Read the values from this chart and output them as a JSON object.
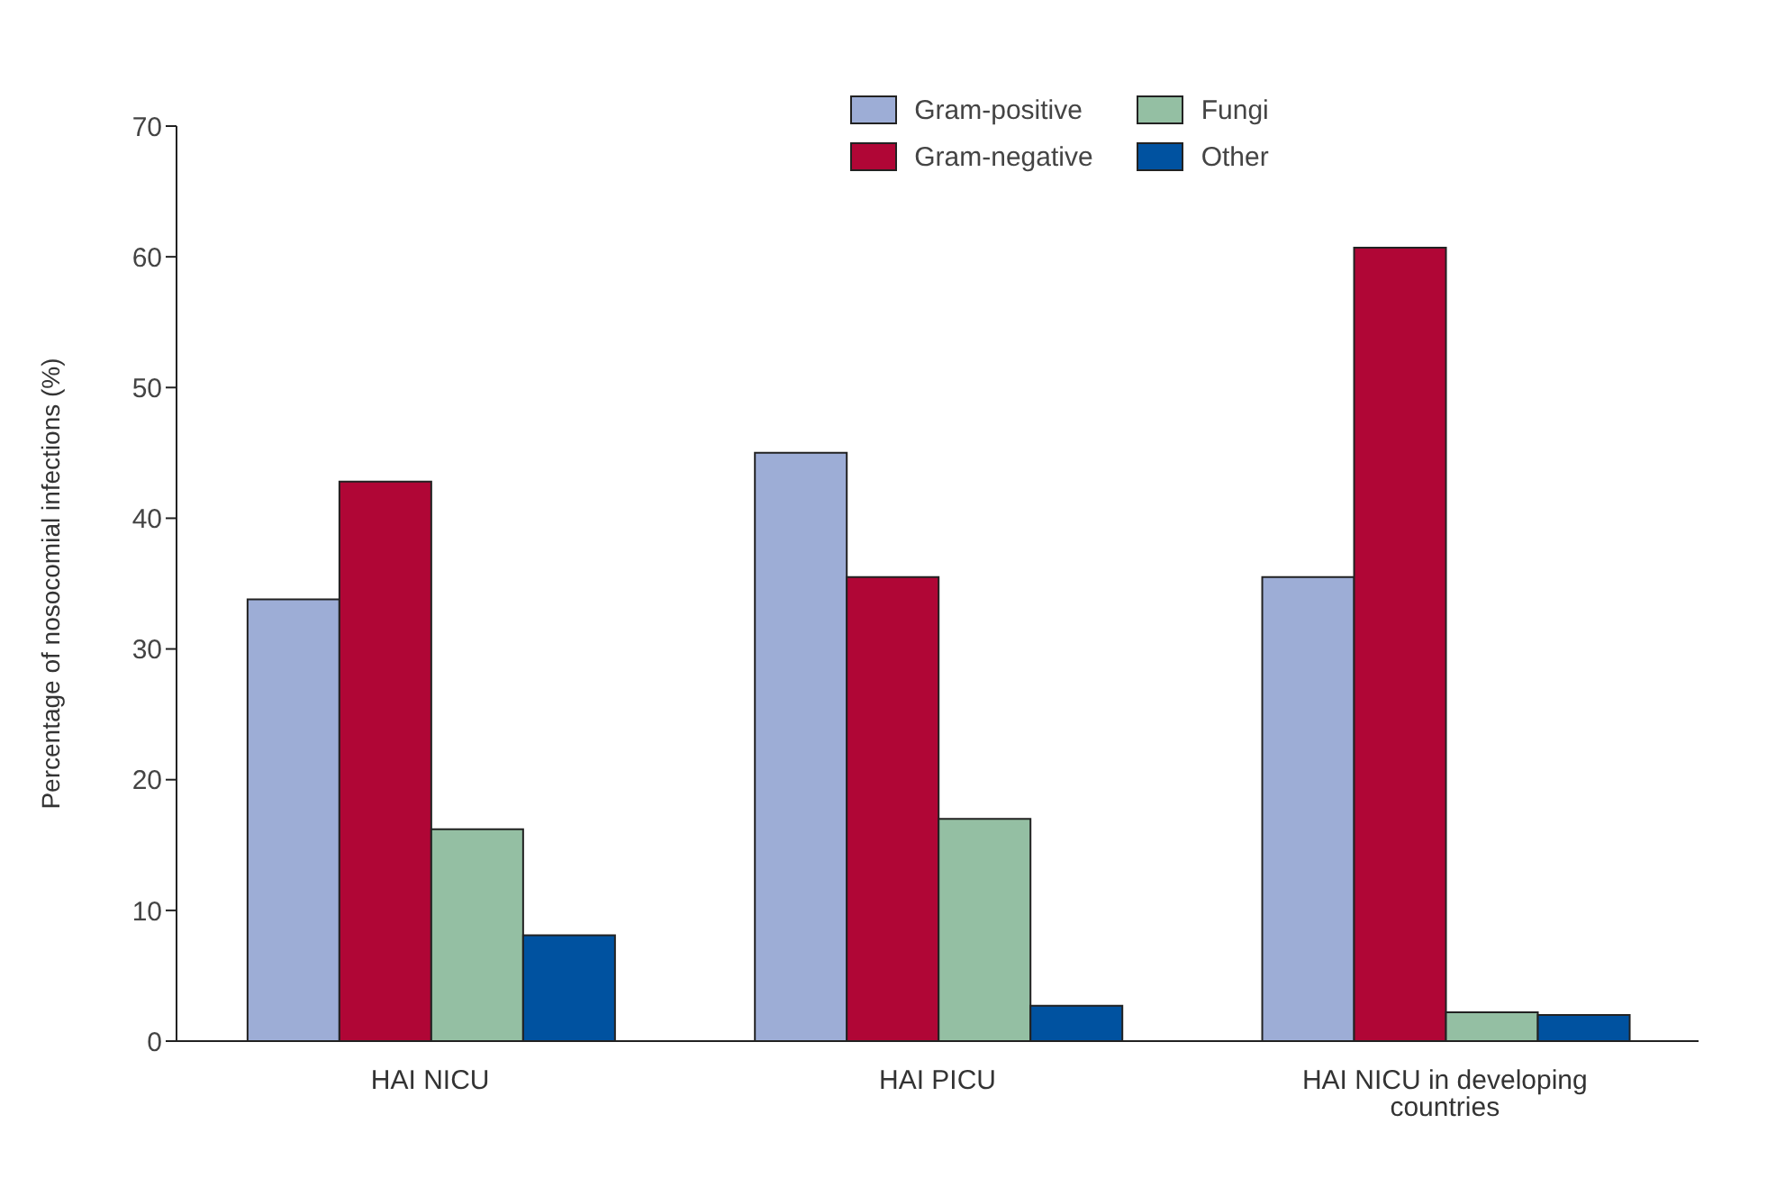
{
  "chart_data": {
    "type": "bar",
    "ylabel": "Percentage of nosocomial infections (%)",
    "categories": [
      "HAI NICU",
      "HAI PICU",
      "HAI NICU in developing countries"
    ],
    "series": [
      {
        "name": "Gram-positive",
        "color": "#9dadd6",
        "values": [
          33.8,
          45.0,
          35.5
        ]
      },
      {
        "name": "Gram-negative",
        "color": "#b00636",
        "values": [
          42.8,
          35.5,
          60.7
        ]
      },
      {
        "name": "Fungi",
        "color": "#94bfa3",
        "values": [
          16.2,
          17.0,
          2.2
        ]
      },
      {
        "name": "Other",
        "color": "#0052a0",
        "values": [
          8.1,
          2.7,
          2.0
        ]
      }
    ],
    "ylim": [
      0,
      70
    ],
    "yticks": [
      0,
      10,
      20,
      30,
      40,
      50,
      60,
      70
    ],
    "grid": false,
    "legend": "top"
  }
}
